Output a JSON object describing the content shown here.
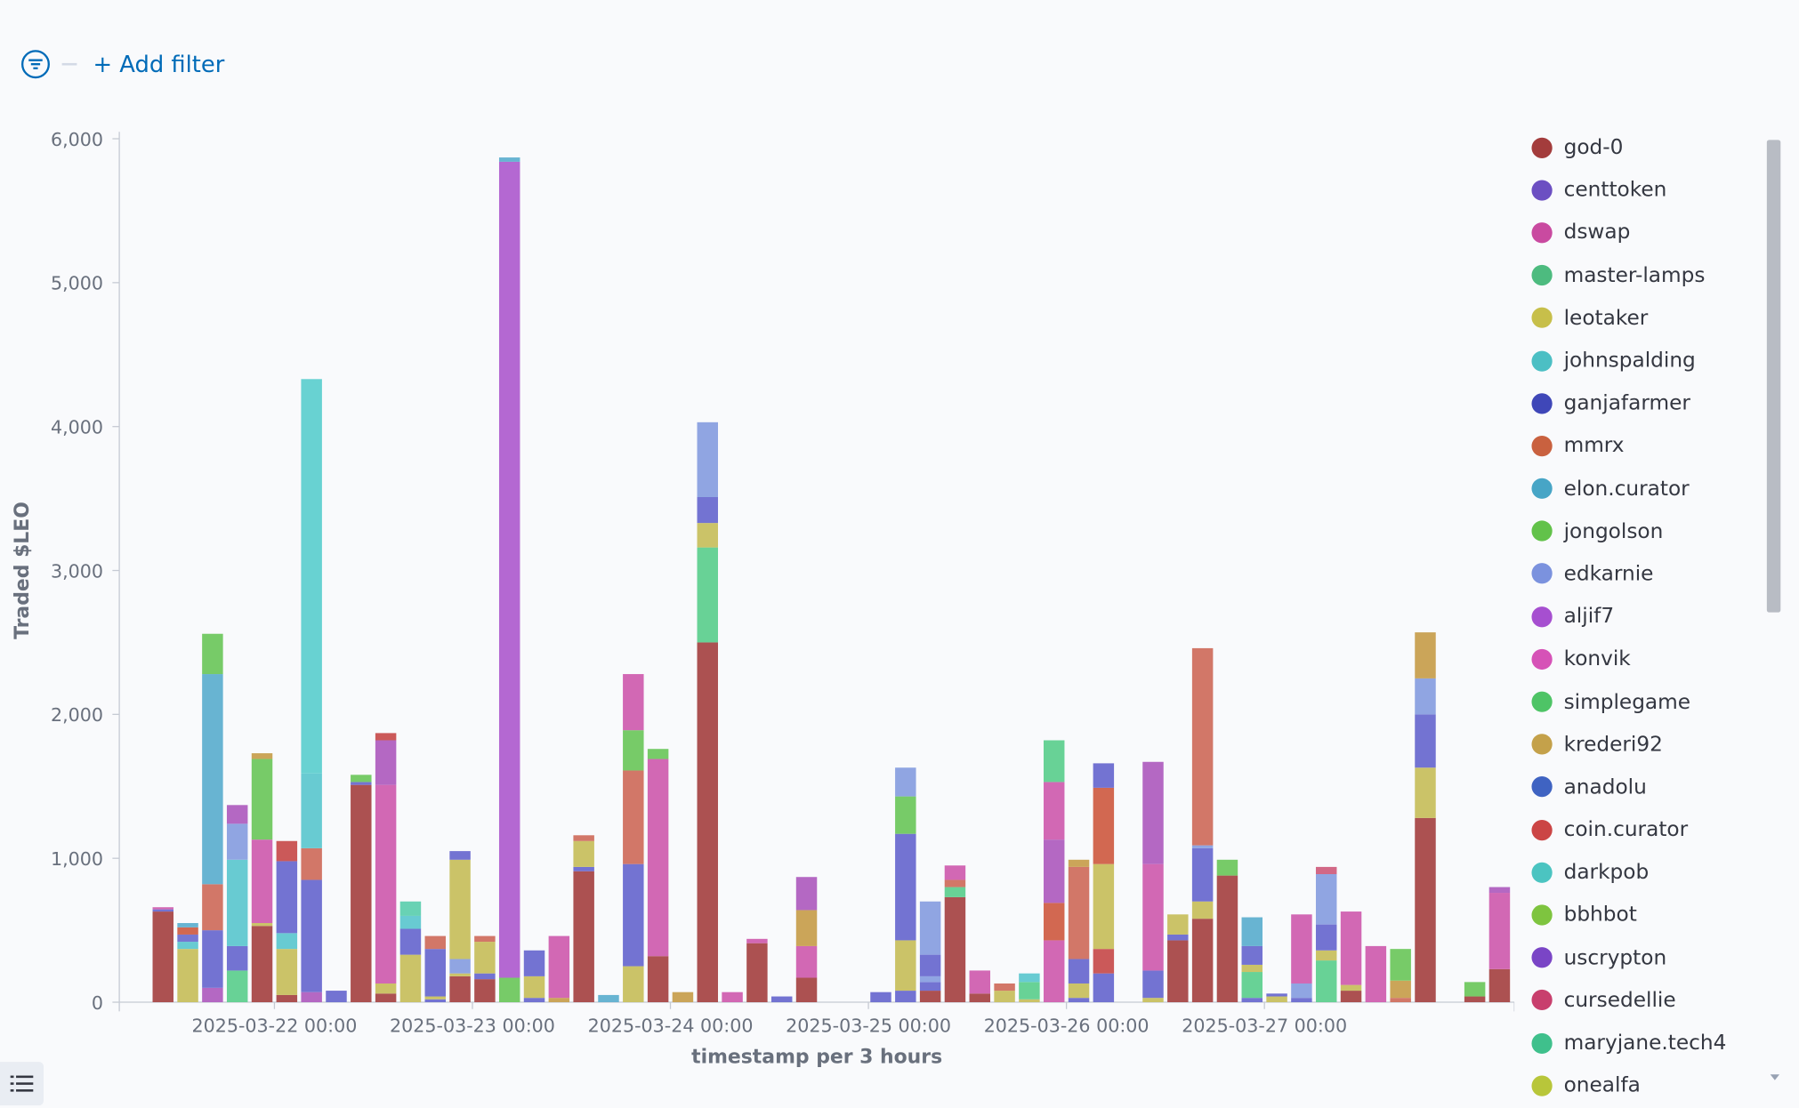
{
  "filter_bar": {
    "add_filter_label": "+ Add filter"
  },
  "legend_items": [
    {
      "label": "god-0",
      "color": "#a33c3c"
    },
    {
      "label": "centtoken",
      "color": "#6c4fc2"
    },
    {
      "label": "dswap",
      "color": "#c94aa0"
    },
    {
      "label": "master-lamps",
      "color": "#4dbb7f"
    },
    {
      "label": "leotaker",
      "color": "#c7bf4a"
    },
    {
      "label": "johnspalding",
      "color": "#4cbfc4"
    },
    {
      "label": "ganjafarmer",
      "color": "#3f47b8"
    },
    {
      "label": "mmrx",
      "color": "#c9613f"
    },
    {
      "label": "elon.curator",
      "color": "#47a5c6"
    },
    {
      "label": "jongolson",
      "color": "#62c24a"
    },
    {
      "label": "edkarnie",
      "color": "#7b92de"
    },
    {
      "label": "aljif7",
      "color": "#a64fd0"
    },
    {
      "label": "konvik",
      "color": "#d652b7"
    },
    {
      "label": "simplegame",
      "color": "#4ec466"
    },
    {
      "label": "krederi92",
      "color": "#c4a14a"
    },
    {
      "label": "anadolu",
      "color": "#3f63c2"
    },
    {
      "label": "coin.curator",
      "color": "#cb4545"
    },
    {
      "label": "darkpob",
      "color": "#4bc4c1"
    },
    {
      "label": "bbhbot",
      "color": "#7ec43f"
    },
    {
      "label": "uscrypton",
      "color": "#7a45c6"
    },
    {
      "label": "cursedellie",
      "color": "#c83f6d"
    },
    {
      "label": "maryjane.tech4",
      "color": "#3fc08c"
    },
    {
      "label": "onealfa",
      "color": "#b8c63a"
    }
  ],
  "chart_data": {
    "type": "bar",
    "stacked": true,
    "xlabel": "timestamp per 3 hours",
    "ylabel": "Traded $LEO",
    "ylim": [
      0,
      6000
    ],
    "y_ticks": [
      0,
      1000,
      2000,
      3000,
      4000,
      5000,
      6000
    ],
    "y_tick_labels": [
      "0",
      "1,000",
      "2,000",
      "3,000",
      "4,000",
      "5,000",
      "6,000"
    ],
    "x_ticks": [
      {
        "value": "2025-03-22 00:00",
        "label": "2025-03-22 00:00"
      },
      {
        "value": "2025-03-23 00:00",
        "label": "2025-03-23 00:00"
      },
      {
        "value": "2025-03-24 00:00",
        "label": "2025-03-24 00:00"
      },
      {
        "value": "2025-03-25 00:00",
        "label": "2025-03-25 00:00"
      },
      {
        "value": "2025-03-26 00:00",
        "label": "2025-03-26 00:00"
      },
      {
        "value": "2025-03-27 00:00",
        "label": "2025-03-27 00:00"
      }
    ],
    "grid": false,
    "legend_position": "right",
    "bars": [
      {
        "t": "2025-03-21 09:00",
        "segs": [
          [
            "#a84848",
            630
          ],
          [
            "#6b6bd0",
            15
          ],
          [
            "#d060b0",
            15
          ]
        ]
      },
      {
        "t": "2025-03-21 12:00",
        "segs": [
          [
            "#c8c060",
            370
          ],
          [
            "#60c8d0",
            50
          ],
          [
            "#7070d0",
            50
          ],
          [
            "#d06048",
            50
          ],
          [
            "#60b0d0",
            30
          ]
        ]
      },
      {
        "t": "2025-03-21 15:00",
        "segs": [
          [
            "#b060c0",
            100
          ],
          [
            "#6b6bd0",
            400
          ],
          [
            "#d07060",
            320
          ],
          [
            "#60b0d0",
            1460
          ],
          [
            "#70c860",
            280
          ]
        ]
      },
      {
        "t": "2025-03-21 18:00",
        "segs": [
          [
            "#60d090",
            220
          ],
          [
            "#6b6bd0",
            170
          ],
          [
            "#60c8d0",
            600
          ],
          [
            "#8aa0e0",
            250
          ],
          [
            "#b060c0",
            130
          ]
        ]
      },
      {
        "t": "2025-03-21 21:00",
        "segs": [
          [
            "#a84848",
            530
          ],
          [
            "#c8c060",
            20
          ],
          [
            "#d060b0",
            580
          ],
          [
            "#70c860",
            560
          ],
          [
            "#c8a050",
            40
          ]
        ]
      },
      {
        "t": "2025-03-22 00:00",
        "segs": [
          [
            "#a84848",
            50
          ],
          [
            "#c8c060",
            320
          ],
          [
            "#60c8d0",
            110
          ],
          [
            "#6b6bd0",
            500
          ],
          [
            "#c85050",
            140
          ]
        ]
      },
      {
        "t": "2025-03-22 03:00",
        "segs": [
          [
            "#b060c0",
            70
          ],
          [
            "#6b6bd0",
            780
          ],
          [
            "#d07060",
            220
          ],
          [
            "#60c8d0",
            520
          ],
          [
            "#60d0d0",
            2740
          ]
        ]
      },
      {
        "t": "2025-03-22 06:00",
        "segs": [
          [
            "#6b6bd0",
            80
          ]
        ]
      },
      {
        "t": "2025-03-22 09:00",
        "segs": [
          [
            "#a84848",
            1510
          ],
          [
            "#6b6bd0",
            20
          ],
          [
            "#70c860",
            50
          ]
        ]
      },
      {
        "t": "2025-03-22 12:00",
        "segs": [
          [
            "#a84848",
            60
          ],
          [
            "#c8c060",
            70
          ],
          [
            "#d060b0",
            1380
          ],
          [
            "#b060c0",
            310
          ],
          [
            "#c85050",
            50
          ]
        ]
      },
      {
        "t": "2025-03-22 15:00",
        "segs": [
          [
            "#c8c060",
            330
          ],
          [
            "#6b6bd0",
            180
          ],
          [
            "#60c8d0",
            90
          ],
          [
            "#60d0b0",
            100
          ]
        ]
      },
      {
        "t": "2025-03-22 18:00",
        "segs": [
          [
            "#6b6bd0",
            20
          ],
          [
            "#c8c060",
            20
          ],
          [
            "#6b6bd0",
            330
          ],
          [
            "#d07060",
            90
          ]
        ]
      },
      {
        "t": "2025-03-22 21:00",
        "segs": [
          [
            "#a84848",
            180
          ],
          [
            "#c8c060",
            20
          ],
          [
            "#8aa0e0",
            100
          ],
          [
            "#c8c060",
            690
          ],
          [
            "#6b6bd0",
            60
          ]
        ]
      },
      {
        "t": "2025-03-23 00:00",
        "segs": [
          [
            "#a84848",
            160
          ],
          [
            "#6b6bd0",
            40
          ],
          [
            "#c8c060",
            220
          ],
          [
            "#d07060",
            40
          ]
        ]
      },
      {
        "t": "2025-03-23 03:00",
        "segs": [
          [
            "#70c860",
            170
          ],
          [
            "#b060d0",
            5670
          ],
          [
            "#60b0d0",
            30
          ]
        ]
      },
      {
        "t": "2025-03-23 06:00",
        "segs": [
          [
            "#6b6bd0",
            30
          ],
          [
            "#c8c060",
            150
          ],
          [
            "#6b6bd0",
            180
          ]
        ]
      },
      {
        "t": "2025-03-23 09:00",
        "segs": [
          [
            "#c8a050",
            30
          ],
          [
            "#d060b0",
            430
          ]
        ]
      },
      {
        "t": "2025-03-23 12:00",
        "segs": [
          [
            "#a84848",
            910
          ],
          [
            "#6b6bd0",
            30
          ],
          [
            "#c8c060",
            180
          ],
          [
            "#d07060",
            40
          ]
        ]
      },
      {
        "t": "2025-03-23 15:00",
        "segs": [
          [
            "#60b0d0",
            50
          ]
        ]
      },
      {
        "t": "2025-03-23 18:00",
        "segs": [
          [
            "#c8c060",
            250
          ],
          [
            "#6b6bd0",
            710
          ],
          [
            "#d07060",
            650
          ],
          [
            "#70c860",
            280
          ],
          [
            "#d060b0",
            390
          ]
        ]
      },
      {
        "t": "2025-03-23 21:00",
        "segs": [
          [
            "#a84848",
            320
          ],
          [
            "#d060b0",
            1370
          ],
          [
            "#70c860",
            70
          ]
        ]
      },
      {
        "t": "2025-03-24 00:00",
        "segs": [
          [
            "#c8a050",
            70
          ]
        ]
      },
      {
        "t": "2025-03-24 03:00",
        "segs": [
          [
            "#a84848",
            2500
          ],
          [
            "#60d090",
            660
          ],
          [
            "#c8c060",
            170
          ],
          [
            "#6b6bd0",
            180
          ],
          [
            "#8aa0e0",
            520
          ]
        ]
      },
      {
        "t": "2025-03-24 06:00",
        "segs": [
          [
            "#d060b0",
            70
          ]
        ]
      },
      {
        "t": "2025-03-24 09:00",
        "segs": [
          [
            "#a84848",
            410
          ],
          [
            "#d060b0",
            30
          ]
        ]
      },
      {
        "t": "2025-03-24 12:00",
        "segs": [
          [
            "#6b6bd0",
            40
          ]
        ]
      },
      {
        "t": "2025-03-24 15:00",
        "segs": [
          [
            "#a84848",
            170
          ],
          [
            "#d060b0",
            220
          ],
          [
            "#c8a050",
            250
          ],
          [
            "#b060c0",
            230
          ]
        ]
      },
      {
        "t": "2025-03-25 00:00",
        "segs": [
          [
            "#6b6bd0",
            70
          ]
        ]
      },
      {
        "t": "2025-03-25 03:00",
        "segs": [
          [
            "#6b6bd0",
            80
          ],
          [
            "#c8c060",
            350
          ],
          [
            "#6b6bd0",
            740
          ],
          [
            "#70c860",
            260
          ],
          [
            "#8aa0e0",
            200
          ]
        ]
      },
      {
        "t": "2025-03-25 06:00",
        "segs": [
          [
            "#a84848",
            80
          ],
          [
            "#6b6bd0",
            60
          ],
          [
            "#8aa0e0",
            40
          ],
          [
            "#6b6bd0",
            150
          ],
          [
            "#8aa0e0",
            370
          ]
        ]
      },
      {
        "t": "2025-03-25 09:00",
        "segs": [
          [
            "#a84848",
            730
          ],
          [
            "#60d090",
            70
          ],
          [
            "#d07060",
            50
          ],
          [
            "#d060b0",
            100
          ]
        ]
      },
      {
        "t": "2025-03-25 12:00",
        "segs": [
          [
            "#a84848",
            60
          ],
          [
            "#d060b0",
            160
          ]
        ]
      },
      {
        "t": "2025-03-25 15:00",
        "segs": [
          [
            "#c8c060",
            80
          ],
          [
            "#d07060",
            50
          ]
        ]
      },
      {
        "t": "2025-03-25 18:00",
        "segs": [
          [
            "#c8c060",
            20
          ],
          [
            "#60d090",
            120
          ],
          [
            "#60c8d0",
            60
          ]
        ]
      },
      {
        "t": "2025-03-25 21:00",
        "segs": [
          [
            "#d060b0",
            430
          ],
          [
            "#d06048",
            260
          ],
          [
            "#b060c0",
            440
          ],
          [
            "#d060b0",
            400
          ],
          [
            "#60d090",
            290
          ]
        ]
      },
      {
        "t": "2025-03-26 00:00",
        "segs": [
          [
            "#6b6bd0",
            30
          ],
          [
            "#c8c060",
            100
          ],
          [
            "#6b6bd0",
            170
          ],
          [
            "#d07060",
            640
          ],
          [
            "#c8a050",
            50
          ]
        ]
      },
      {
        "t": "2025-03-26 03:00",
        "segs": [
          [
            "#6b6bd0",
            200
          ],
          [
            "#c85050",
            170
          ],
          [
            "#c8c060",
            590
          ],
          [
            "#d06048",
            530
          ],
          [
            "#6b6bd0",
            170
          ]
        ]
      },
      {
        "t": "2025-03-26 09:00",
        "segs": [
          [
            "#c8c060",
            30
          ],
          [
            "#6b6bd0",
            190
          ],
          [
            "#d060b0",
            740
          ],
          [
            "#b060c0",
            710
          ]
        ]
      },
      {
        "t": "2025-03-26 12:00",
        "segs": [
          [
            "#a84848",
            430
          ],
          [
            "#6b6bd0",
            40
          ],
          [
            "#c8c060",
            140
          ]
        ]
      },
      {
        "t": "2025-03-26 15:00",
        "segs": [
          [
            "#a84848",
            580
          ],
          [
            "#c8c060",
            120
          ],
          [
            "#6b6bd0",
            370
          ],
          [
            "#8aa0e0",
            20
          ],
          [
            "#d07060",
            1370
          ]
        ]
      },
      {
        "t": "2025-03-26 18:00",
        "segs": [
          [
            "#a84848",
            880
          ],
          [
            "#70c860",
            110
          ]
        ]
      },
      {
        "t": "2025-03-26 21:00",
        "segs": [
          [
            "#6b6bd0",
            30
          ],
          [
            "#60d090",
            180
          ],
          [
            "#c8c060",
            50
          ],
          [
            "#6b6bd0",
            130
          ],
          [
            "#60b0d0",
            200
          ]
        ]
      },
      {
        "t": "2025-03-27 00:00",
        "segs": [
          [
            "#c8c060",
            40
          ],
          [
            "#6b6bd0",
            20
          ]
        ]
      },
      {
        "t": "2025-03-27 03:00",
        "segs": [
          [
            "#6b6bd0",
            30
          ],
          [
            "#8aa0e0",
            100
          ],
          [
            "#d060b0",
            480
          ]
        ]
      },
      {
        "t": "2025-03-27 06:00",
        "segs": [
          [
            "#60d090",
            290
          ],
          [
            "#c8c060",
            70
          ],
          [
            "#6b6bd0",
            180
          ],
          [
            "#8aa0e0",
            350
          ],
          [
            "#d06080",
            50
          ]
        ]
      },
      {
        "t": "2025-03-27 09:00",
        "segs": [
          [
            "#a84848",
            80
          ],
          [
            "#c8c060",
            40
          ],
          [
            "#d060b0",
            510
          ]
        ]
      },
      {
        "t": "2025-03-27 12:00",
        "segs": [
          [
            "#d060b0",
            390
          ]
        ]
      },
      {
        "t": "2025-03-27 15:00",
        "segs": [
          [
            "#d07060",
            30
          ],
          [
            "#c8a050",
            120
          ],
          [
            "#70c860",
            220
          ]
        ]
      },
      {
        "t": "2025-03-27 18:00",
        "segs": [
          [
            "#a84848",
            1280
          ],
          [
            "#c8c060",
            350
          ],
          [
            "#6b6bd0",
            370
          ],
          [
            "#8aa0e0",
            250
          ],
          [
            "#c8a050",
            320
          ]
        ]
      },
      {
        "t": "2025-03-28 00:00",
        "segs": [
          [
            "#a84848",
            40
          ],
          [
            "#70c860",
            100
          ]
        ]
      },
      {
        "t": "2025-03-28 03:00",
        "segs": [
          [
            "#a84848",
            230
          ],
          [
            "#d060b0",
            530
          ],
          [
            "#b060c0",
            40
          ]
        ]
      }
    ]
  }
}
